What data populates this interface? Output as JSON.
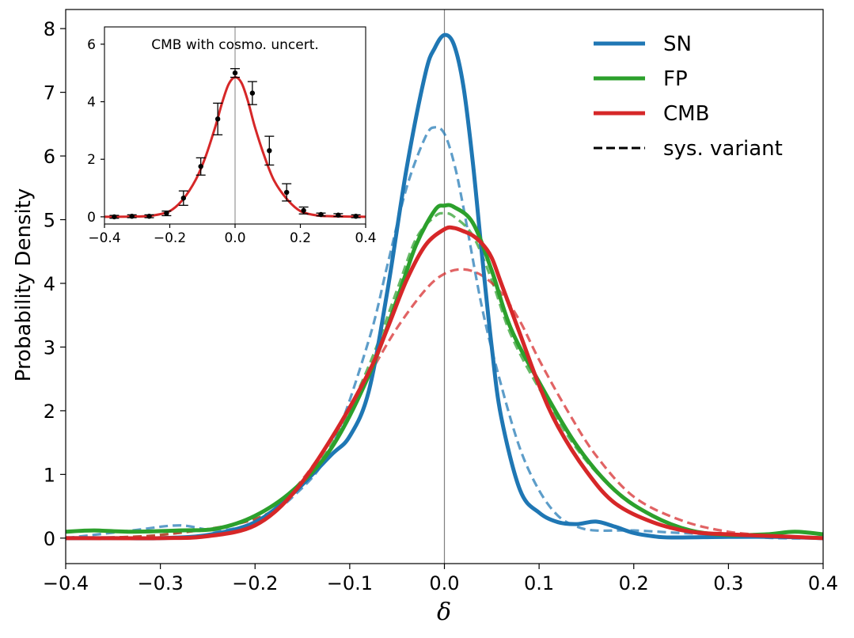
{
  "chart_data": [
    {
      "type": "line",
      "title": "",
      "xlabel": "δ",
      "ylabel": "Probability Density",
      "xlim": [
        -0.4,
        0.4
      ],
      "ylim": [
        -0.4,
        8.3
      ],
      "xticks": [
        -0.4,
        -0.3,
        -0.2,
        -0.1,
        0.0,
        0.1,
        0.2,
        0.3,
        0.4
      ],
      "xtick_labels": [
        "−0.4",
        "−0.3",
        "−0.2",
        "−0.1",
        "0.0",
        "0.1",
        "0.2",
        "0.3",
        "0.4"
      ],
      "yticks": [
        0,
        1,
        2,
        3,
        4,
        5,
        6,
        7,
        8
      ],
      "ytick_labels": [
        "0",
        "1",
        "2",
        "3",
        "4",
        "5",
        "6",
        "7",
        "8"
      ],
      "vline_x": 0.0,
      "legend_position": "top-right",
      "legend": [
        {
          "label": "SN",
          "color": "#1f77b4",
          "style": "solid"
        },
        {
          "label": "FP",
          "color": "#2ca02c",
          "style": "solid"
        },
        {
          "label": "CMB",
          "color": "#d62728",
          "style": "solid"
        },
        {
          "label": "sys. variant",
          "color": "#000000",
          "style": "dashed"
        }
      ],
      "series": [
        {
          "name": "SN",
          "style": "solid",
          "color": "#1f77b4",
          "x": [
            -0.4,
            -0.35,
            -0.3,
            -0.25,
            -0.2,
            -0.16,
            -0.12,
            -0.1,
            -0.08,
            -0.06,
            -0.04,
            -0.02,
            -0.01,
            0.0,
            0.01,
            0.02,
            0.03,
            0.04,
            0.05,
            0.06,
            0.08,
            0.1,
            0.12,
            0.14,
            0.16,
            0.18,
            0.2,
            0.22,
            0.24,
            0.3,
            0.35,
            0.4
          ],
          "y": [
            0.0,
            0.0,
            0.0,
            0.05,
            0.25,
            0.7,
            1.3,
            1.6,
            2.3,
            3.9,
            5.8,
            7.3,
            7.7,
            7.9,
            7.75,
            7.1,
            5.9,
            4.4,
            3.0,
            1.9,
            0.75,
            0.4,
            0.25,
            0.22,
            0.26,
            0.18,
            0.08,
            0.03,
            0.01,
            0.02,
            0.02,
            0.0
          ]
        },
        {
          "name": "FP",
          "style": "solid",
          "color": "#2ca02c",
          "x": [
            -0.4,
            -0.37,
            -0.33,
            -0.28,
            -0.24,
            -0.2,
            -0.16,
            -0.12,
            -0.08,
            -0.05,
            -0.03,
            -0.01,
            0.0,
            0.01,
            0.03,
            0.05,
            0.07,
            0.1,
            0.14,
            0.18,
            0.22,
            0.26,
            0.3,
            0.34,
            0.37,
            0.4
          ],
          "y": [
            0.1,
            0.12,
            0.1,
            0.12,
            0.15,
            0.35,
            0.75,
            1.4,
            2.55,
            3.75,
            4.6,
            5.15,
            5.22,
            5.2,
            4.95,
            4.2,
            3.3,
            2.45,
            1.45,
            0.75,
            0.35,
            0.12,
            0.05,
            0.06,
            0.1,
            0.06
          ]
        },
        {
          "name": "CMB",
          "style": "solid",
          "color": "#d62728",
          "x": [
            -0.4,
            -0.3,
            -0.25,
            -0.2,
            -0.16,
            -0.12,
            -0.08,
            -0.06,
            -0.04,
            -0.02,
            0.0,
            0.01,
            0.02,
            0.03,
            0.04,
            0.05,
            0.06,
            0.08,
            0.1,
            0.12,
            0.15,
            0.18,
            0.22,
            0.26,
            0.3,
            0.35,
            0.4
          ],
          "y": [
            0.0,
            0.0,
            0.03,
            0.2,
            0.7,
            1.55,
            2.6,
            3.3,
            4.05,
            4.6,
            4.85,
            4.87,
            4.82,
            4.75,
            4.62,
            4.4,
            4.0,
            3.2,
            2.4,
            1.75,
            1.05,
            0.55,
            0.25,
            0.1,
            0.06,
            0.03,
            0.0
          ]
        },
        {
          "name": "SN sys. variant",
          "style": "dashed",
          "color": "#1f77b4",
          "x": [
            -0.4,
            -0.33,
            -0.28,
            -0.24,
            -0.2,
            -0.16,
            -0.12,
            -0.08,
            -0.06,
            -0.04,
            -0.02,
            -0.01,
            0.0,
            0.01,
            0.02,
            0.04,
            0.06,
            0.08,
            0.1,
            0.12,
            0.14,
            0.16,
            0.2,
            0.25,
            0.3,
            0.35,
            0.4
          ],
          "y": [
            0.0,
            0.12,
            0.2,
            0.12,
            0.25,
            0.65,
            1.4,
            3.1,
            4.3,
            5.5,
            6.3,
            6.45,
            6.35,
            5.9,
            5.2,
            3.6,
            2.4,
            1.4,
            0.75,
            0.35,
            0.18,
            0.12,
            0.12,
            0.08,
            0.05,
            0.0,
            0.0
          ]
        },
        {
          "name": "FP sys. variant",
          "style": "dashed",
          "color": "#2ca02c",
          "x": [
            -0.4,
            -0.3,
            -0.2,
            -0.16,
            -0.12,
            -0.08,
            -0.05,
            -0.03,
            -0.01,
            0.0,
            0.01,
            0.03,
            0.05,
            0.07,
            0.1,
            0.14,
            0.18,
            0.22,
            0.26,
            0.3,
            0.35,
            0.4
          ],
          "y": [
            0.0,
            0.05,
            0.3,
            0.75,
            1.45,
            2.7,
            3.9,
            4.7,
            5.05,
            5.1,
            5.05,
            4.75,
            4.05,
            3.2,
            2.35,
            1.4,
            0.75,
            0.35,
            0.12,
            0.05,
            0.02,
            0.0
          ]
        },
        {
          "name": "CMB sys. variant",
          "style": "dashed",
          "color": "#d62728",
          "x": [
            -0.4,
            -0.3,
            -0.2,
            -0.16,
            -0.12,
            -0.08,
            -0.05,
            -0.02,
            0.0,
            0.02,
            0.04,
            0.06,
            0.08,
            0.1,
            0.13,
            0.16,
            0.2,
            0.25,
            0.3,
            0.35,
            0.4
          ],
          "y": [
            0.0,
            0.05,
            0.3,
            0.75,
            1.55,
            2.55,
            3.3,
            3.9,
            4.15,
            4.22,
            4.12,
            3.85,
            3.4,
            2.8,
            2.0,
            1.3,
            0.65,
            0.28,
            0.1,
            0.04,
            0.0
          ]
        }
      ]
    },
    {
      "type": "line",
      "title": "CMB with cosmo. uncert.",
      "xlabel": "",
      "ylabel": "",
      "xlim": [
        -0.4,
        0.4
      ],
      "ylim": [
        -0.25,
        6.6
      ],
      "xticks": [
        -0.4,
        -0.2,
        0.0,
        0.2,
        0.4
      ],
      "xtick_labels": [
        "−0.4",
        "−0.2",
        "0.0",
        "0.2",
        "0.4"
      ],
      "yticks": [
        0,
        2,
        4,
        6
      ],
      "ytick_labels": [
        "0",
        "2",
        "4",
        "6"
      ],
      "vline_x": 0.0,
      "series": [
        {
          "name": "CMB",
          "style": "solid",
          "color": "#d62728",
          "x": [
            -0.4,
            -0.3,
            -0.25,
            -0.2,
            -0.16,
            -0.12,
            -0.09,
            -0.06,
            -0.04,
            -0.02,
            0.0,
            0.02,
            0.04,
            0.06,
            0.09,
            0.12,
            0.16,
            0.2,
            0.25,
            0.3,
            0.4
          ],
          "y": [
            0.0,
            0.01,
            0.05,
            0.2,
            0.6,
            1.3,
            2.1,
            3.15,
            3.95,
            4.6,
            4.85,
            4.65,
            4.0,
            3.15,
            2.1,
            1.25,
            0.6,
            0.2,
            0.05,
            0.02,
            0.0
          ]
        }
      ],
      "errorbars": {
        "x": [
          -0.37,
          -0.316,
          -0.263,
          -0.21,
          -0.158,
          -0.105,
          -0.053,
          0.0,
          0.053,
          0.105,
          0.158,
          0.21,
          0.263,
          0.316,
          0.37
        ],
        "y": [
          0.0,
          0.02,
          0.02,
          0.12,
          0.65,
          1.75,
          3.4,
          5.0,
          4.3,
          2.3,
          0.85,
          0.22,
          0.08,
          0.06,
          0.02
        ],
        "err": [
          0.05,
          0.05,
          0.05,
          0.08,
          0.25,
          0.3,
          0.55,
          0.15,
          0.4,
          0.5,
          0.3,
          0.12,
          0.05,
          0.05,
          0.05
        ]
      }
    }
  ]
}
